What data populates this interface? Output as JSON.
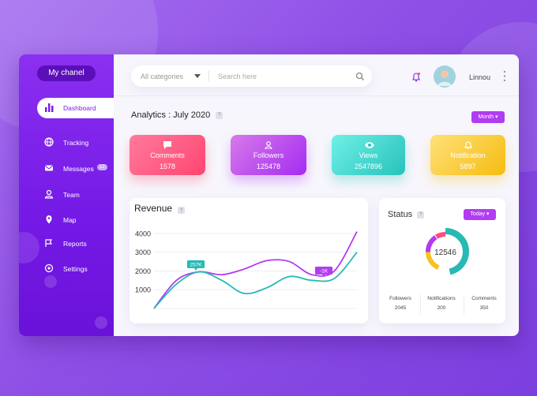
{
  "sidebar": {
    "brand": "My chanel",
    "nav": [
      {
        "label": "Dashboard"
      },
      {
        "label": "Tracking"
      },
      {
        "label": "Messages",
        "badge": "12"
      },
      {
        "label": "Team"
      },
      {
        "label": "Map"
      },
      {
        "label": "Reports"
      },
      {
        "label": "Settings"
      }
    ]
  },
  "topbar": {
    "category": "All categories",
    "search": "Search here",
    "user": "Linnou"
  },
  "analytics": {
    "title": "Analytics : July 2020",
    "help": "?",
    "period": "Month"
  },
  "cards": [
    {
      "label": "Comments",
      "value": 1578
    },
    {
      "label": "Followers",
      "value": 125478
    },
    {
      "label": "Views",
      "value": 2547896
    },
    {
      "label": "Notification",
      "value": 5897
    }
  ],
  "chart_data": {
    "type": "line",
    "title": "Revenue",
    "help": "?",
    "categories": [
      null,
      null,
      null,
      null,
      null,
      null,
      null,
      null,
      null,
      null
    ],
    "series": [
      {
        "color": "#b13cf1",
        "values": [
          0,
          1500,
          1950,
          1800,
          2100,
          2550,
          2500,
          1800,
          2000,
          4100
        ]
      },
      {
        "color": "#27b9b3",
        "values": [
          0,
          1300,
          1950,
          1500,
          800,
          1100,
          1700,
          1500,
          1600,
          3000
        ]
      }
    ],
    "ylim": [
      0,
      4500
    ],
    "yticks": [
      1000,
      2000,
      3000,
      4000
    ],
    "grid": true,
    "annotations": [
      "257K",
      "-1K"
    ]
  },
  "status": {
    "title": "Status",
    "help": "?",
    "period": "Today",
    "total": 12546,
    "stats": [
      {
        "label": "Followers",
        "value": 2045
      },
      {
        "label": "Notifications",
        "value": 200
      },
      {
        "label": "Comments",
        "value": 350
      }
    ]
  }
}
